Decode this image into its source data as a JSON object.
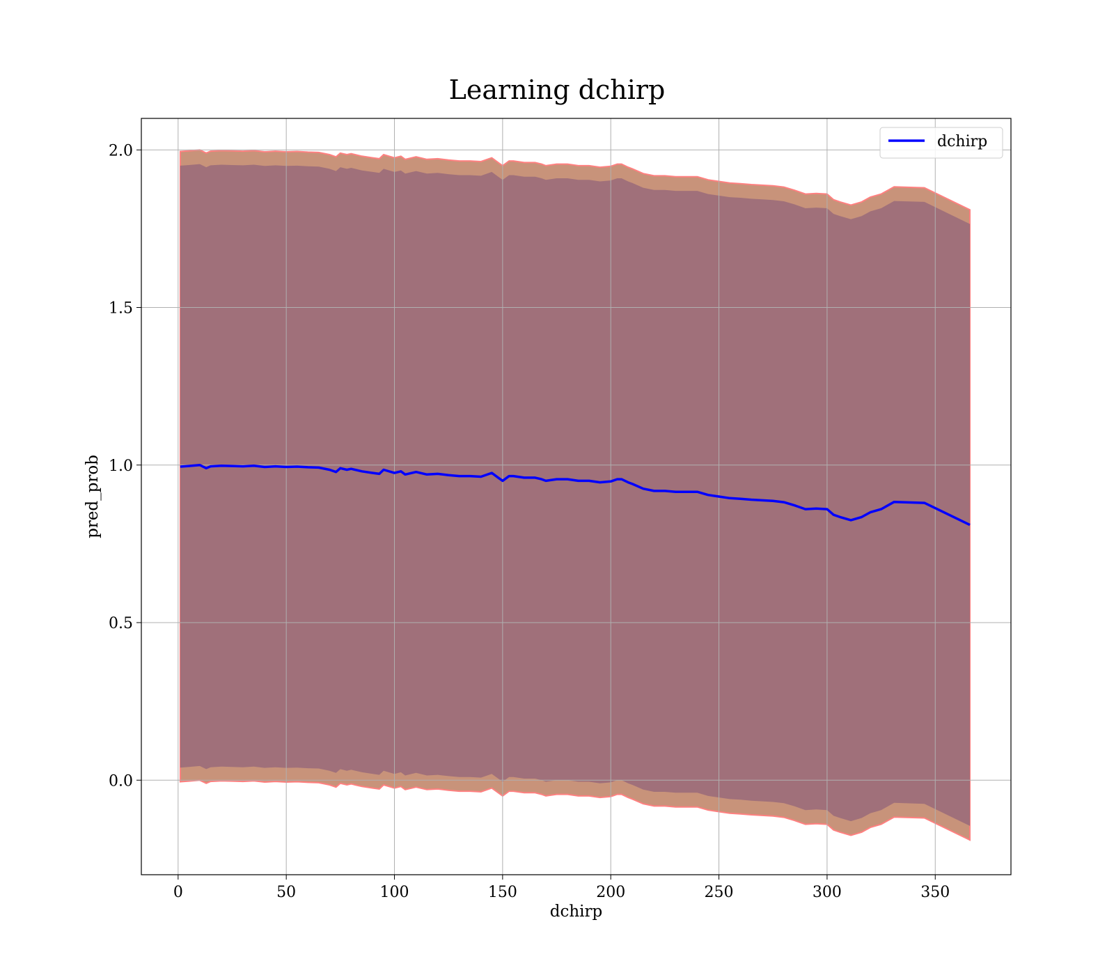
{
  "chart_data": {
    "type": "line",
    "title": "Learning dchirp",
    "xlabel": "dchirp",
    "ylabel": "pred_prob",
    "xlim": [
      -17,
      385
    ],
    "ylim": [
      -0.3,
      2.1
    ],
    "x_ticks": [
      "0",
      "50",
      "100",
      "150",
      "200",
      "250",
      "300",
      "350"
    ],
    "y_ticks": [
      "0.0",
      "0.5",
      "1.0",
      "1.5",
      "2.0"
    ],
    "grid": true,
    "legend_position": "top-right",
    "colors": {
      "line": "#0000ff",
      "outer_band": "#c8937a",
      "outer_band_edge": "#ff8080",
      "inner_band": "#a0707a"
    },
    "series": [
      {
        "name": "dchirp",
        "x": [
          1,
          5,
          10,
          13,
          15,
          20,
          25,
          30,
          35,
          40,
          45,
          50,
          55,
          60,
          65,
          70,
          73,
          75,
          78,
          80,
          85,
          90,
          93,
          95,
          100,
          103,
          105,
          110,
          115,
          120,
          125,
          130,
          135,
          140,
          145,
          148,
          150,
          153,
          155,
          160,
          165,
          168,
          170,
          175,
          180,
          185,
          190,
          195,
          200,
          203,
          205,
          208,
          210,
          215,
          220,
          225,
          230,
          235,
          240,
          245,
          250,
          255,
          260,
          265,
          270,
          275,
          280,
          285,
          290,
          295,
          300,
          303,
          306,
          311,
          316,
          320,
          325,
          331,
          345,
          366
        ],
        "y": [
          0.995,
          0.997,
          1.0,
          0.99,
          0.996,
          0.998,
          0.997,
          0.996,
          0.998,
          0.994,
          0.996,
          0.994,
          0.995,
          0.993,
          0.992,
          0.985,
          0.978,
          0.99,
          0.985,
          0.988,
          0.98,
          0.975,
          0.972,
          0.985,
          0.975,
          0.98,
          0.97,
          0.978,
          0.97,
          0.972,
          0.968,
          0.965,
          0.965,
          0.963,
          0.975,
          0.96,
          0.95,
          0.965,
          0.965,
          0.96,
          0.96,
          0.955,
          0.95,
          0.955,
          0.955,
          0.95,
          0.95,
          0.945,
          0.948,
          0.955,
          0.955,
          0.945,
          0.94,
          0.925,
          0.918,
          0.918,
          0.915,
          0.915,
          0.915,
          0.905,
          0.9,
          0.895,
          0.893,
          0.89,
          0.888,
          0.886,
          0.882,
          0.872,
          0.86,
          0.862,
          0.86,
          0.842,
          0.835,
          0.825,
          0.835,
          0.85,
          0.86,
          0.883,
          0.88,
          0.81
        ]
      }
    ],
    "bands": {
      "outer_halfwidth": [
        1.0,
        1.0,
        1.0,
        1.0,
        1.0,
        1.0,
        1.0,
        1.0,
        1.0,
        1.0,
        1.0,
        1.0,
        1.0,
        1.0,
        1.0,
        1.0,
        1.0,
        1.0,
        1.0,
        1.0,
        1.0,
        1.0,
        1.0,
        1.0,
        1.0,
        1.0,
        1.0,
        1.0,
        1.0,
        1.0,
        1.0,
        1.0,
        1.0,
        1.0,
        1.0,
        1.0,
        1.0,
        1.0,
        1.0,
        1.0,
        1.0,
        1.0,
        1.0,
        1.0,
        1.0,
        1.0,
        1.0,
        1.0,
        1.0,
        1.0,
        1.0,
        1.0,
        1.0,
        1.0,
        1.0,
        1.0,
        1.0,
        1.0,
        1.0,
        1.0,
        1.0,
        1.0,
        1.0,
        1.0,
        1.0,
        1.0,
        1.0,
        1.0,
        1.0,
        1.0,
        1.0,
        1.0,
        1.0,
        1.0,
        1.0,
        1.0,
        1.0,
        1.0,
        1.0,
        1.0
      ],
      "inner_halfwidth": [
        0.955,
        0.955,
        0.955,
        0.955,
        0.955,
        0.955,
        0.955,
        0.955,
        0.955,
        0.955,
        0.955,
        0.955,
        0.955,
        0.955,
        0.955,
        0.955,
        0.955,
        0.955,
        0.955,
        0.955,
        0.955,
        0.955,
        0.955,
        0.955,
        0.955,
        0.955,
        0.955,
        0.955,
        0.955,
        0.955,
        0.955,
        0.955,
        0.955,
        0.955,
        0.955,
        0.955,
        0.955,
        0.955,
        0.955,
        0.955,
        0.955,
        0.955,
        0.955,
        0.955,
        0.955,
        0.955,
        0.955,
        0.955,
        0.955,
        0.955,
        0.955,
        0.955,
        0.955,
        0.955,
        0.955,
        0.955,
        0.955,
        0.955,
        0.955,
        0.955,
        0.955,
        0.955,
        0.955,
        0.955,
        0.955,
        0.955,
        0.955,
        0.955,
        0.955,
        0.955,
        0.955,
        0.955,
        0.955,
        0.955,
        0.955,
        0.955,
        0.955,
        0.955,
        0.955,
        0.955
      ]
    }
  }
}
